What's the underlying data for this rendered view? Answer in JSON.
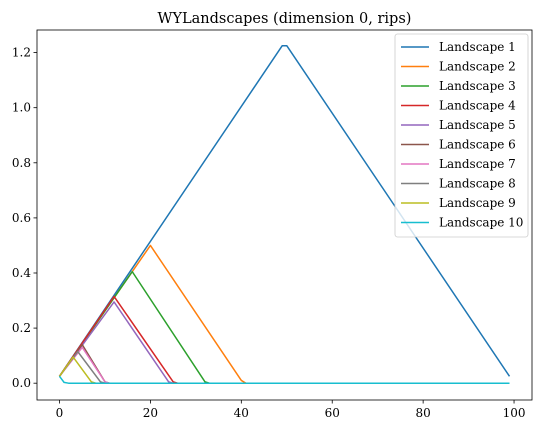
{
  "chart_data": {
    "type": "line",
    "title": "WYLandscapes (dimension 0, rips)",
    "xlabel": "",
    "ylabel": "",
    "xlim": [
      -4.95,
      103.95
    ],
    "ylim": [
      -0.061,
      1.282
    ],
    "xticks": [
      0,
      20,
      40,
      60,
      80,
      100
    ],
    "yticks": [
      0.0,
      0.2,
      0.4,
      0.6,
      0.8,
      1.0,
      1.2
    ],
    "xtick_labels": [
      "0",
      "20",
      "40",
      "60",
      "80",
      "100"
    ],
    "ytick_labels": [
      "0.0",
      "0.2",
      "0.4",
      "0.6",
      "0.8",
      "1.0",
      "1.2"
    ],
    "grid": false,
    "legend_position": "top-right",
    "series": [
      {
        "name": "Landscape 1",
        "color": "#1f77b4",
        "points": [
          [
            0,
            0.025
          ],
          [
            49,
            1.225
          ],
          [
            50,
            1.225
          ],
          [
            99,
            0.025
          ]
        ]
      },
      {
        "name": "Landscape 2",
        "color": "#ff7f0e",
        "points": [
          [
            0,
            0.025
          ],
          [
            20,
            0.5
          ],
          [
            40,
            0.01
          ],
          [
            41,
            0
          ],
          [
            99,
            0
          ]
        ]
      },
      {
        "name": "Landscape 3",
        "color": "#2ca02c",
        "points": [
          [
            0,
            0.025
          ],
          [
            16,
            0.405
          ],
          [
            32,
            0.005
          ],
          [
            33,
            0
          ],
          [
            99,
            0
          ]
        ]
      },
      {
        "name": "Landscape 4",
        "color": "#d62728",
        "points": [
          [
            0,
            0.025
          ],
          [
            12,
            0.315
          ],
          [
            25,
            0.005
          ],
          [
            26,
            0
          ],
          [
            99,
            0
          ]
        ]
      },
      {
        "name": "Landscape 5",
        "color": "#9467bd",
        "points": [
          [
            0,
            0.025
          ],
          [
            12,
            0.295
          ],
          [
            24,
            0.005
          ],
          [
            25,
            0
          ],
          [
            99,
            0
          ]
        ]
      },
      {
        "name": "Landscape 6",
        "color": "#8c564b",
        "points": [
          [
            0,
            0.025
          ],
          [
            5,
            0.14
          ],
          [
            10,
            0.005
          ],
          [
            11,
            0
          ],
          [
            99,
            0
          ]
        ]
      },
      {
        "name": "Landscape 7",
        "color": "#e377c2",
        "points": [
          [
            0,
            0.025
          ],
          [
            5,
            0.13
          ],
          [
            10,
            0.005
          ],
          [
            11,
            0
          ],
          [
            99,
            0
          ]
        ]
      },
      {
        "name": "Landscape 8",
        "color": "#7f7f7f",
        "points": [
          [
            0,
            0.025
          ],
          [
            4,
            0.115
          ],
          [
            9,
            0.005
          ],
          [
            10,
            0
          ],
          [
            99,
            0
          ]
        ]
      },
      {
        "name": "Landscape 9",
        "color": "#bcbd22",
        "points": [
          [
            0,
            0.025
          ],
          [
            3,
            0.095
          ],
          [
            7,
            0.005
          ],
          [
            8,
            0
          ],
          [
            99,
            0
          ]
        ]
      },
      {
        "name": "Landscape 10",
        "color": "#17becf",
        "points": [
          [
            0,
            0.025
          ],
          [
            1,
            0.003
          ],
          [
            2,
            0
          ],
          [
            99,
            0
          ]
        ]
      }
    ]
  }
}
